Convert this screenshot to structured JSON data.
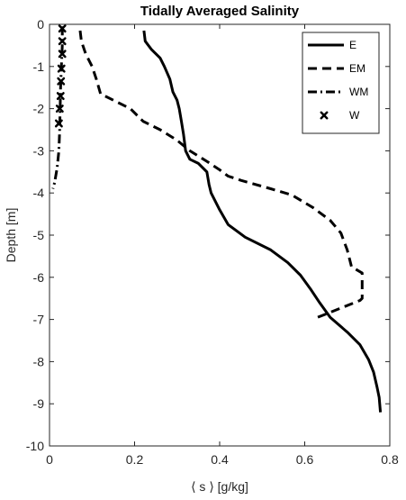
{
  "chart_data": {
    "type": "line",
    "title": "Tidally Averaged Salinity",
    "xlabel": "⟨ s ⟩ [g/kg]",
    "ylabel": "Depth [m]",
    "xlim": [
      0,
      0.8
    ],
    "ylim": [
      -10,
      0
    ],
    "xticks": [
      "0",
      "0.2",
      "0.4",
      "0.6",
      "0.8"
    ],
    "yticks": [
      "0",
      "-1",
      "-2",
      "-3",
      "-4",
      "-5",
      "-6",
      "-7",
      "-8",
      "-9",
      "-10"
    ],
    "grid": false,
    "legend_position": "top-right",
    "series": [
      {
        "name": "E",
        "style": "solid",
        "color": "#000000",
        "points": [
          [
            0.222,
            -0.15
          ],
          [
            0.225,
            -0.4
          ],
          [
            0.24,
            -0.6
          ],
          [
            0.26,
            -0.8
          ],
          [
            0.27,
            -1.0
          ],
          [
            0.283,
            -1.3
          ],
          [
            0.29,
            -1.6
          ],
          [
            0.3,
            -1.8
          ],
          [
            0.305,
            -2.0
          ],
          [
            0.31,
            -2.3
          ],
          [
            0.315,
            -2.6
          ],
          [
            0.32,
            -3.0
          ],
          [
            0.33,
            -3.2
          ],
          [
            0.35,
            -3.3
          ],
          [
            0.37,
            -3.5
          ],
          [
            0.375,
            -3.8
          ],
          [
            0.38,
            -4.0
          ],
          [
            0.4,
            -4.4
          ],
          [
            0.42,
            -4.75
          ],
          [
            0.46,
            -5.05
          ],
          [
            0.52,
            -5.35
          ],
          [
            0.56,
            -5.65
          ],
          [
            0.59,
            -5.95
          ],
          [
            0.615,
            -6.3
          ],
          [
            0.635,
            -6.6
          ],
          [
            0.66,
            -6.95
          ],
          [
            0.7,
            -7.3
          ],
          [
            0.73,
            -7.6
          ],
          [
            0.75,
            -7.95
          ],
          [
            0.762,
            -8.25
          ],
          [
            0.77,
            -8.6
          ],
          [
            0.775,
            -8.85
          ],
          [
            0.778,
            -9.2
          ]
        ]
      },
      {
        "name": "EM",
        "style": "dashed",
        "color": "#000000",
        "points": [
          [
            0.072,
            -0.15
          ],
          [
            0.075,
            -0.4
          ],
          [
            0.085,
            -0.7
          ],
          [
            0.1,
            -1.0
          ],
          [
            0.11,
            -1.3
          ],
          [
            0.12,
            -1.65
          ],
          [
            0.15,
            -1.8
          ],
          [
            0.19,
            -2.0
          ],
          [
            0.22,
            -2.3
          ],
          [
            0.26,
            -2.5
          ],
          [
            0.3,
            -2.75
          ],
          [
            0.33,
            -3.0
          ],
          [
            0.37,
            -3.25
          ],
          [
            0.4,
            -3.45
          ],
          [
            0.42,
            -3.6
          ],
          [
            0.45,
            -3.7
          ],
          [
            0.52,
            -3.9
          ],
          [
            0.57,
            -4.05
          ],
          [
            0.62,
            -4.35
          ],
          [
            0.66,
            -4.65
          ],
          [
            0.685,
            -4.95
          ],
          [
            0.7,
            -5.35
          ],
          [
            0.71,
            -5.75
          ],
          [
            0.735,
            -5.9
          ],
          [
            0.735,
            -6.5
          ],
          [
            0.73,
            -6.55
          ],
          [
            0.68,
            -6.75
          ],
          [
            0.63,
            -6.95
          ]
        ]
      },
      {
        "name": "WM",
        "style": "dashdot",
        "color": "#000000",
        "points": [
          [
            0.03,
            -0.05
          ],
          [
            0.03,
            -0.5
          ],
          [
            0.028,
            -1.0
          ],
          [
            0.026,
            -1.5
          ],
          [
            0.025,
            -2.0
          ],
          [
            0.024,
            -2.5
          ],
          [
            0.022,
            -3.0
          ],
          [
            0.018,
            -3.4
          ],
          [
            0.012,
            -3.75
          ],
          [
            0.008,
            -3.9
          ]
        ]
      },
      {
        "name": "W",
        "style": "markers",
        "marker": "x",
        "color": "#000000",
        "points": [
          [
            0.03,
            -0.1
          ],
          [
            0.03,
            -0.4
          ],
          [
            0.03,
            -0.7
          ],
          [
            0.028,
            -1.05
          ],
          [
            0.027,
            -1.35
          ],
          [
            0.026,
            -1.7
          ],
          [
            0.024,
            -2.0
          ],
          [
            0.022,
            -2.35
          ]
        ]
      }
    ]
  }
}
